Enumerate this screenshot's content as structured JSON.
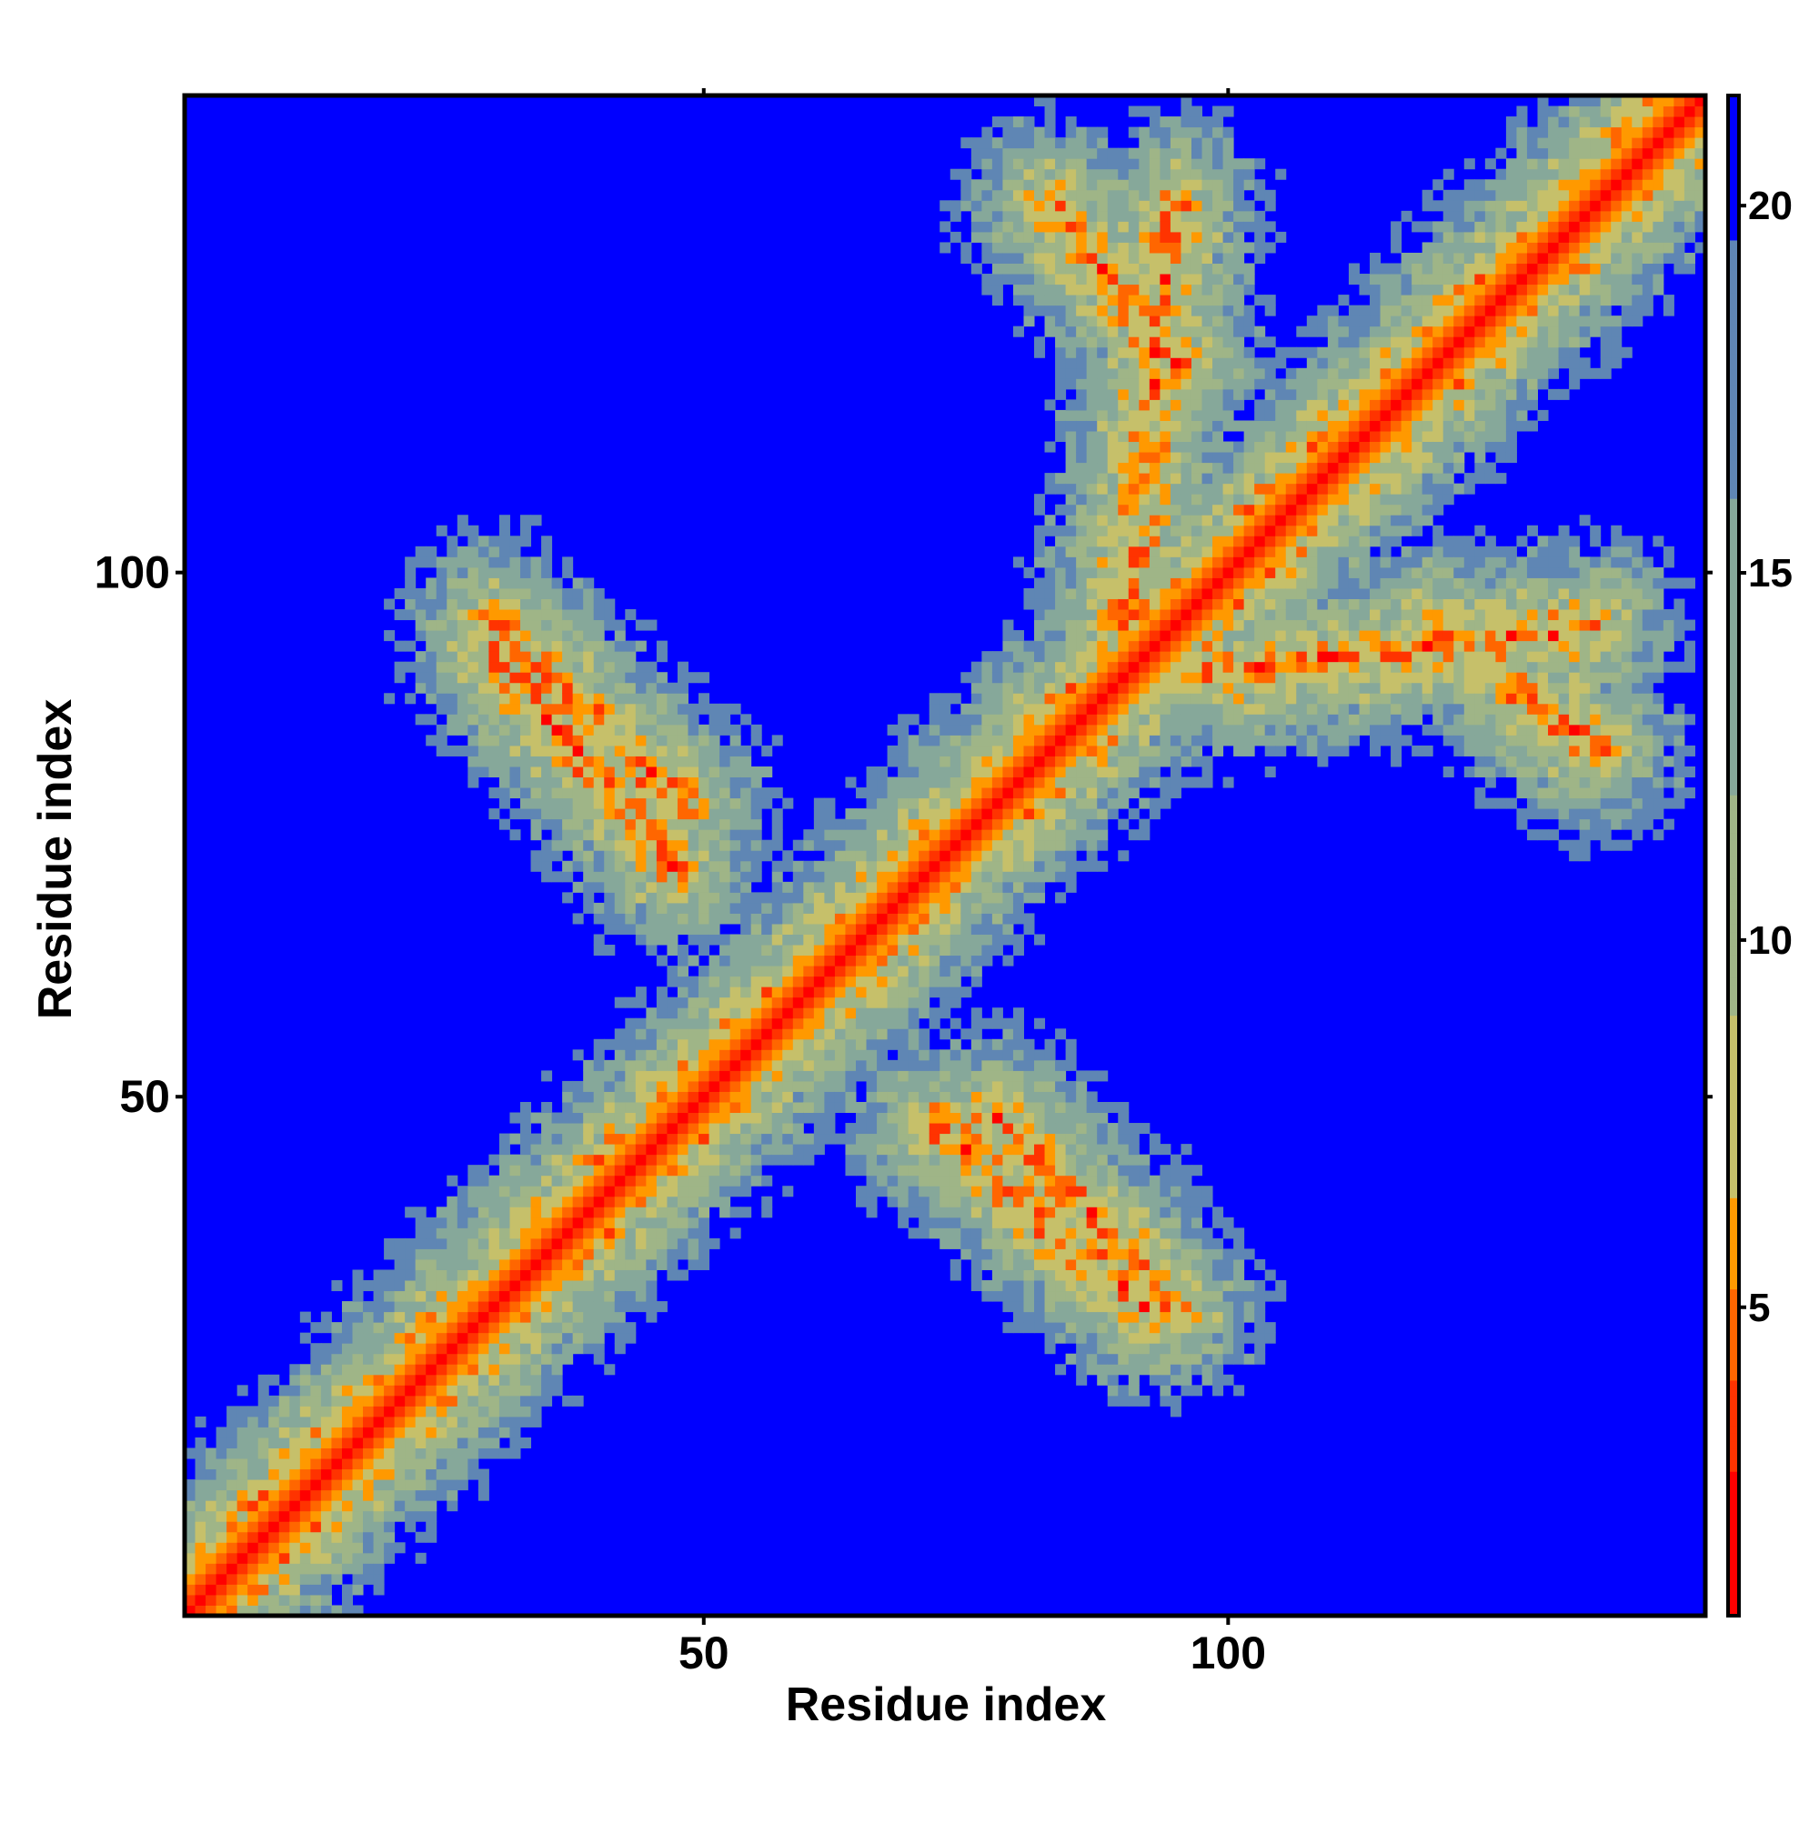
{
  "chart_data": {
    "type": "heatmap",
    "title": "",
    "xlabel": "Residue index",
    "ylabel": "Residue index",
    "xlim": [
      1,
      145
    ],
    "ylim": [
      1,
      145
    ],
    "x_ticks": [
      50,
      100
    ],
    "x_top_ticks": [
      50,
      100
    ],
    "y_ticks": [
      50,
      100
    ],
    "y_tick_labels": [
      "50",
      "100"
    ],
    "x_tick_labels": [
      "50",
      "100"
    ],
    "colorbar": {
      "ticks": [
        5,
        10,
        15,
        20
      ],
      "tick_labels": [
        "5",
        "10",
        "15",
        "20"
      ],
      "range": [
        0.8,
        21.5
      ]
    },
    "colors": {
      "background": "#0000ff",
      "near": "#ff0000",
      "mid": "#ff9900",
      "far": "#9fb587",
      "outer": "#5f86b4"
    },
    "features": {
      "diagonal_band": "distances < 5 along i=j, widening to ~10 at ±6 residues",
      "antiparallel_contacts": [
        {
          "from": [
            30,
            95
          ],
          "to": [
            48,
            78
          ],
          "min_distance": 5
        },
        {
          "from": [
            72,
            47
          ],
          "to": [
            92,
            30
          ],
          "min_distance": 5
        },
        {
          "from": [
            95,
            90
          ],
          "to": [
            135,
            95
          ],
          "min_distance": 5
        },
        {
          "from": [
            83,
            135
          ],
          "to": [
            95,
            120
          ],
          "min_distance": 5
        }
      ],
      "grid": false
    }
  }
}
